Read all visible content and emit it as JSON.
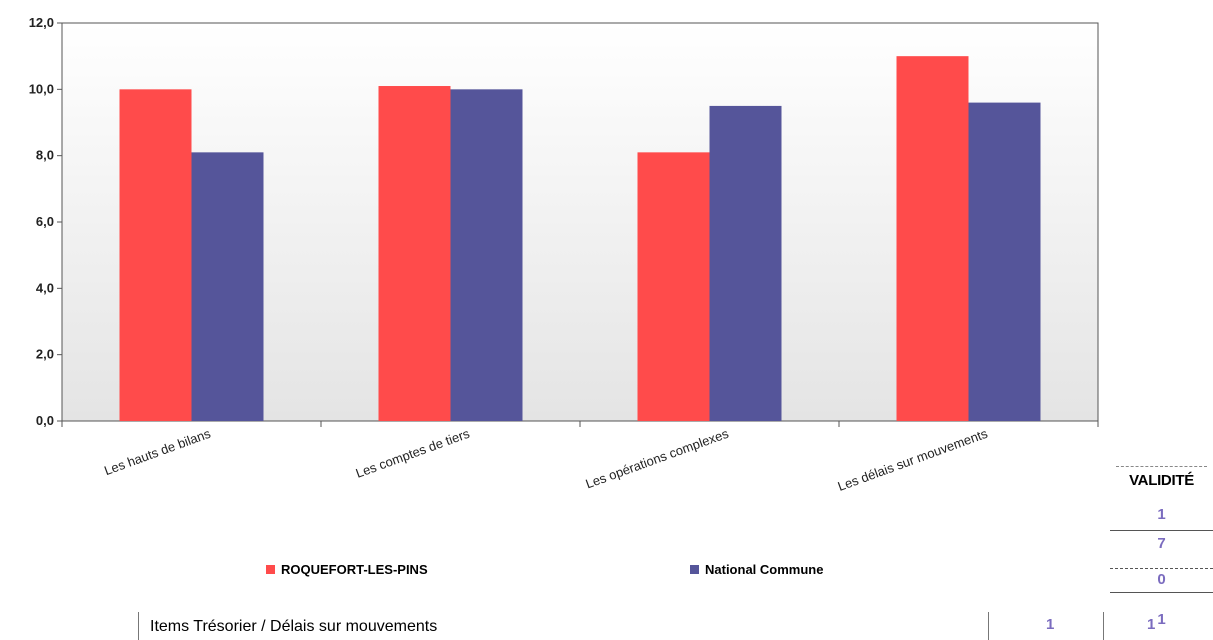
{
  "chart_data": {
    "type": "bar",
    "categories": [
      "Les hauts de bilans",
      "Les comptes de tiers",
      "Les opérations complexes",
      "Les délais sur mouvements"
    ],
    "series": [
      {
        "name": "ROQUEFORT-LES-PINS",
        "color": "#ff4b4b",
        "values": [
          10.0,
          10.1,
          8.1,
          11.0
        ]
      },
      {
        "name": "National Commune",
        "color": "#55559a",
        "values": [
          8.1,
          10.0,
          9.5,
          9.6
        ]
      }
    ],
    "yticks": [
      "0,0",
      "2,0",
      "4,0",
      "6,0",
      "8,0",
      "10,0",
      "12,0"
    ],
    "ylim": [
      0,
      12
    ],
    "grid": false,
    "legend_position": "bottom"
  },
  "side_table": {
    "header": "VALIDITÉ",
    "values": [
      "1",
      "7",
      "0",
      "1"
    ]
  },
  "bottom_row": {
    "label": "Items Trésorier / Délais sur mouvements",
    "value_1": "1",
    "value_2": "1"
  }
}
